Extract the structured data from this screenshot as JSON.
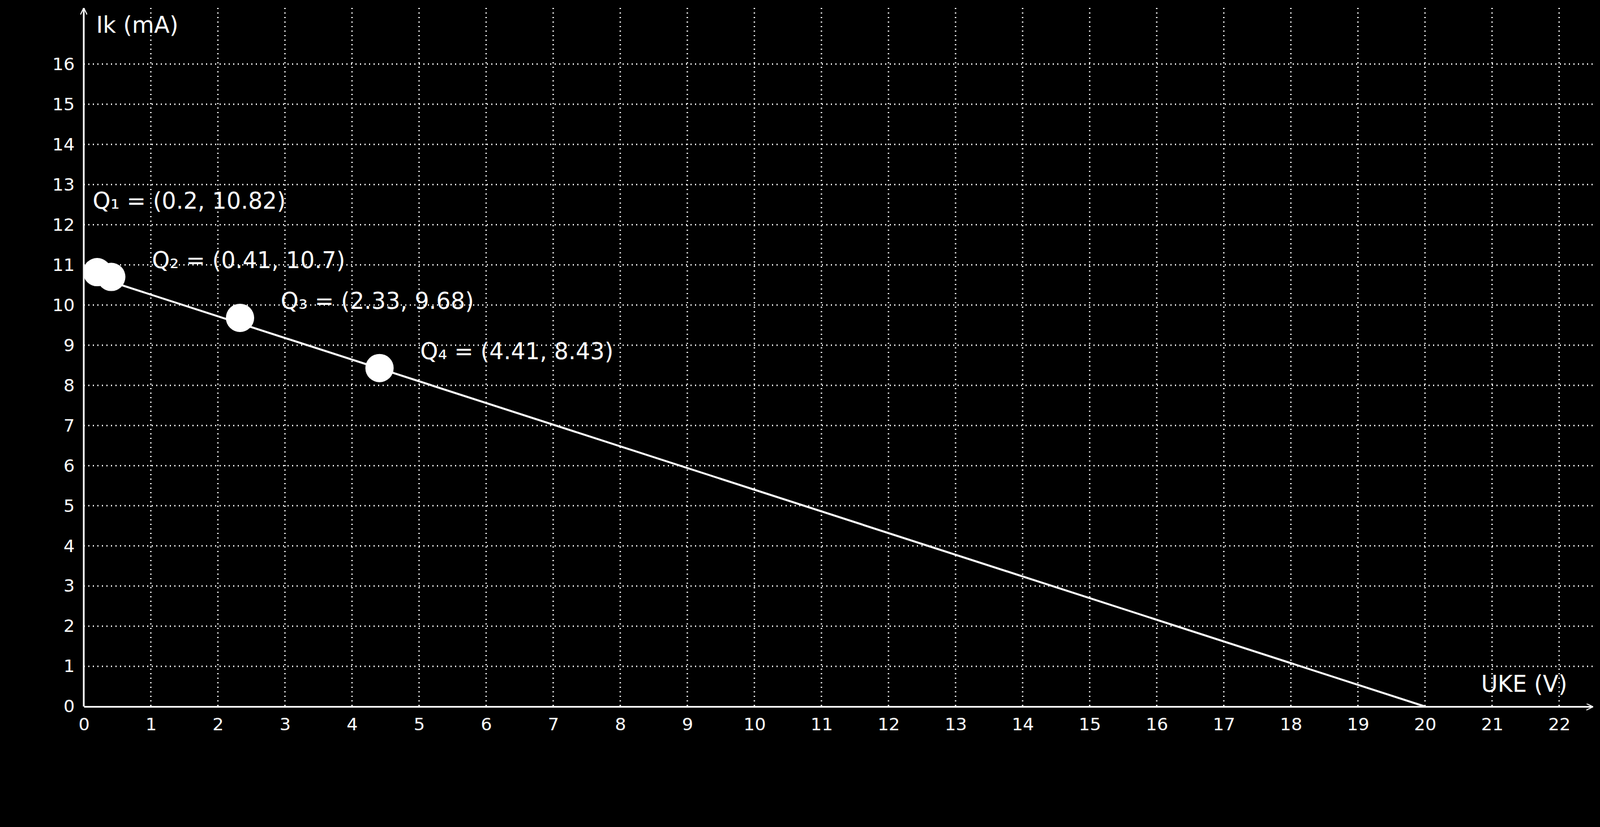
{
  "chart_data": {
    "type": "line",
    "x_label": "UKE (V)",
    "y_label": "Ik (mA)",
    "xlim": [
      0,
      22.5
    ],
    "ylim": [
      0,
      17.4
    ],
    "xticks": [
      0,
      1,
      2,
      3,
      4,
      5,
      6,
      7,
      8,
      9,
      10,
      11,
      12,
      13,
      14,
      15,
      16,
      17,
      18,
      19,
      20,
      21,
      22
    ],
    "yticks": [
      0,
      1,
      2,
      3,
      4,
      5,
      6,
      7,
      8,
      9,
      10,
      11,
      12,
      13,
      14,
      15,
      16
    ],
    "grid": true,
    "series": [
      {
        "type": "line",
        "color": "#ffffff",
        "line_style": "solid",
        "x": [
          0,
          20
        ],
        "values": [
          10.8,
          0
        ]
      },
      {
        "type": "scatter",
        "color": "#ffffff",
        "marker": "circle",
        "x": [
          0.2,
          0.41,
          2.33,
          4.41
        ],
        "values": [
          10.82,
          10.7,
          9.68,
          8.43
        ],
        "labels": [
          "Q₁ = (0.2, 10.82)",
          "Q₂ = (0.41, 10.7)",
          "Q₃ = (2.33, 9.68)",
          "Q₄ = (4.41, 8.43)"
        ]
      }
    ]
  }
}
